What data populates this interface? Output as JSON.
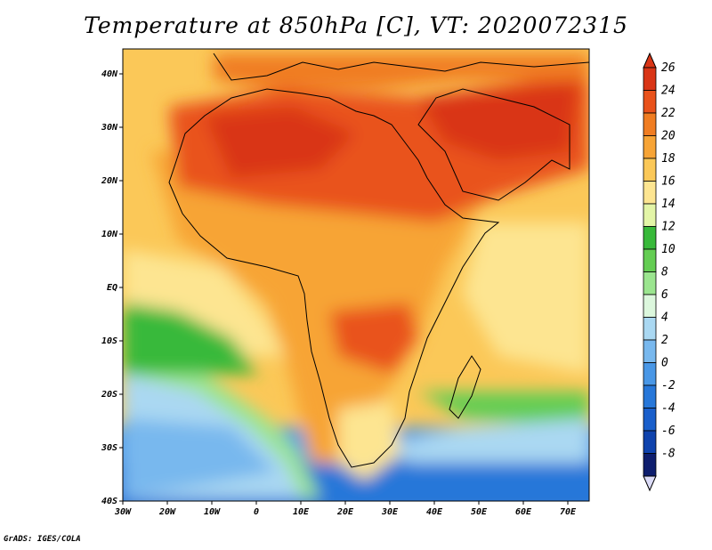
{
  "title": "Temperature at 850hPa [C], VT: 2020072315",
  "credit": "GrADS: IGES/COLA",
  "lat_labels": [
    "40N",
    "30N",
    "20N",
    "10N",
    "EQ",
    "10S",
    "20S",
    "30S",
    "40S"
  ],
  "lon_labels": [
    "30W",
    "20W",
    "10W",
    "0",
    "10E",
    "20E",
    "30E",
    "40E",
    "50E",
    "60E",
    "70E"
  ],
  "colorbar": {
    "labels": [
      "26",
      "24",
      "22",
      "20",
      "18",
      "16",
      "14",
      "12",
      "10",
      "8",
      "6",
      "4",
      "2",
      "0",
      "-2",
      "-4",
      "-6",
      "-8"
    ],
    "colors": [
      "#d93516",
      "#e9521b",
      "#f07d22",
      "#f7a436",
      "#fbc858",
      "#fde591",
      "#e3f5a7",
      "#38b93a",
      "#64cd53",
      "#9be58f",
      "#dcf7dd",
      "#aad8f2",
      "#78b8ee",
      "#4997e6",
      "#2777d9",
      "#1a5fcb",
      "#0f43ad",
      "#0e1e6e"
    ]
  }
}
